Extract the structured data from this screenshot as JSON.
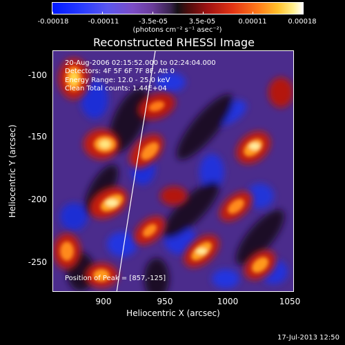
{
  "colorbar": {
    "ticks": [
      "-0.00018",
      "-0.00011",
      "-3.5e-05",
      "3.5e-05",
      "0.00011",
      "0.00018"
    ],
    "unit": "(photons cm⁻² s⁻¹ asec⁻²)"
  },
  "title": "Reconstructed RHESSI Image",
  "info": {
    "time": "20-Aug-2006 02:15:52.000 to 02:24:04.000",
    "detectors": "Detectors: 4F 5F 6F 7F 8F, Att 0",
    "energy": "Energy Range: 12.0 - 25.0 keV",
    "clean": "Clean     Total counts: 1.44E+04",
    "peak": "Position of Peak = [857,-125]"
  },
  "axes": {
    "xlabel": "Heliocentric X (arcsec)",
    "ylabel": "Heliocentric Y (arcsec)",
    "xticks": [
      "900",
      "950",
      "1000",
      "1050"
    ],
    "yticks": [
      "-100",
      "-150",
      "-200",
      "-250"
    ]
  },
  "timestamp": "17-Jul-2013 12:50"
}
